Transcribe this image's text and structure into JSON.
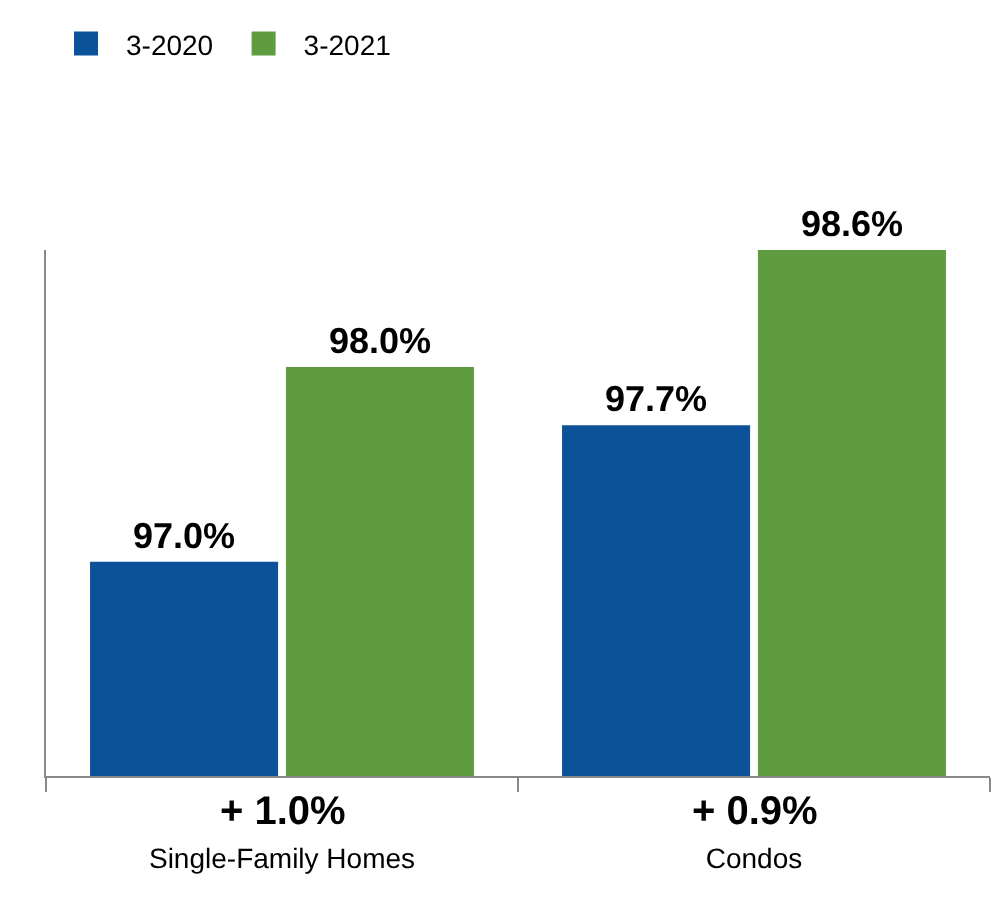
{
  "chart_data": {
    "type": "bar",
    "categories": [
      "Single-Family Homes",
      "Condos"
    ],
    "series": [
      {
        "name": "3-2020",
        "color": "#0b5299",
        "values": [
          97.0,
          97.7
        ],
        "value_labels": [
          "97.0%",
          "97.7%"
        ]
      },
      {
        "name": "3-2021",
        "color": "#5e9c3f",
        "values": [
          98.0,
          98.6
        ],
        "value_labels": [
          "98.0%",
          "98.6%"
        ]
      }
    ],
    "ylim": [
      95.9,
      98.6
    ],
    "tick_labels": "x",
    "legend": "top left",
    "grid": false,
    "annotations": [
      {
        "text": "+ 1.0%",
        "x": "Single-Family Homes"
      },
      {
        "text": "+ 0.9%",
        "x": "Condos"
      }
    ]
  }
}
